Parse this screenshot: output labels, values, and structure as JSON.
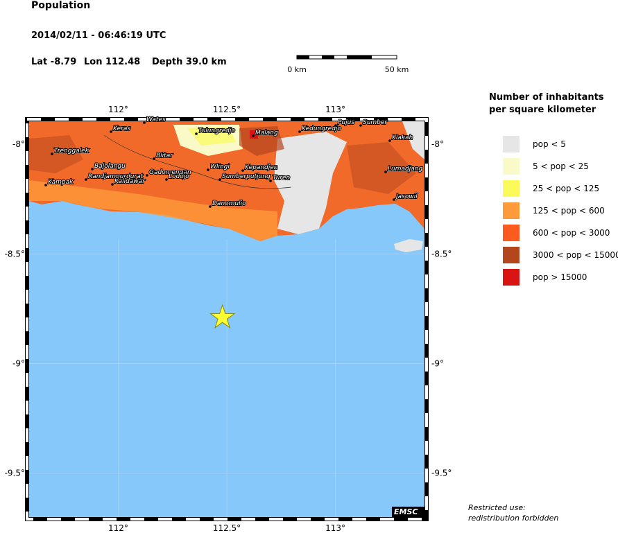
{
  "header": {
    "title": "Population",
    "datetime": "2014/02/11 - 06:46:19 UTC",
    "lat": "Lat -8.79",
    "lon": "Lon 112.48",
    "depth": "Depth  39.0 km"
  },
  "scale_bar": {
    "start": "0 km",
    "end": "50 km"
  },
  "map": {
    "lonlim": [
      111.59,
      113.41
    ],
    "latlim": [
      -7.895,
      -9.7
    ],
    "lon_ticks": [
      {
        "value": 112,
        "label": "112°"
      },
      {
        "value": 112.5,
        "label": "112.5°"
      },
      {
        "value": 113,
        "label": "113°"
      }
    ],
    "lat_ticks": [
      {
        "value": -8,
        "label": "-8°"
      },
      {
        "value": -8.5,
        "label": "-8.5°"
      },
      {
        "value": -9,
        "label": "-9°"
      },
      {
        "value": -9.5,
        "label": "-9.5°"
      }
    ],
    "epicenter": {
      "lat": -8.79,
      "lon": 112.48
    },
    "places": [
      "Keras",
      "Wates",
      "Tulungredjo",
      "Malang",
      "Kedungredjo",
      "Pujus",
      "Sumber",
      "Klakah",
      "Trenggalek",
      "Blitar",
      "Bajolangu",
      "Wlingi",
      "Kepandjen",
      "Lumadjang",
      "Gadomengan",
      "Randjampurdurat",
      "Lodojo",
      "Sumberputjung",
      "Turen",
      "Kampak",
      "Kalidawar",
      "Danomulio",
      "Jasowil"
    ],
    "credit": "EMSC"
  },
  "legend": {
    "title": [
      "Number of inhabitants",
      "per square kilometer"
    ],
    "items": [
      {
        "label": "pop < 5",
        "color": "#e6e6e6"
      },
      {
        "label": "5 < pop < 25",
        "color": "#fafac8"
      },
      {
        "label": "25 < pop < 125",
        "color": "#fafa5a"
      },
      {
        "label": "125 < pop < 600",
        "color": "#fd9a3a"
      },
      {
        "label": "600 < pop < 3000",
        "color": "#fc5a1e"
      },
      {
        "label": "3000 < pop < 15000",
        "color": "#b4461e"
      },
      {
        "label": "pop > 15000",
        "color": "#d81414"
      }
    ]
  },
  "footer": [
    "Restricted use:",
    "redistribution forbidden"
  ]
}
